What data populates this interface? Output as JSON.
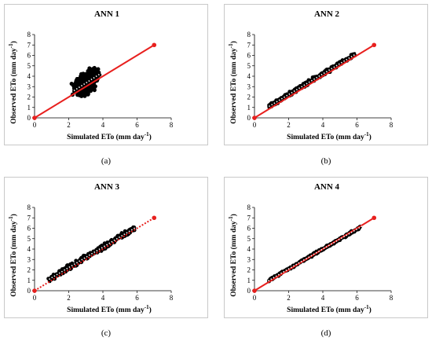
{
  "chart_data": [
    {
      "type": "scatter",
      "panel": "a",
      "caption": "(a)",
      "title": "ANN 1",
      "xlabel": "Simulated ETo (mm day",
      "ylabel": "Observed ETo (mm day",
      "label_superscript": "-1",
      "label_close": ")",
      "xlim": [
        0,
        8
      ],
      "ylim": [
        0,
        8
      ],
      "x_ticks": [
        "0",
        "2",
        "4",
        "6",
        "8"
      ],
      "y_ticks": [
        "0",
        "1",
        "2",
        "3",
        "4",
        "5",
        "6",
        "7",
        "8"
      ],
      "grid": false,
      "point_color": "#000000",
      "scatter_spread": 0.9,
      "x_range": [
        1.2,
        4.6
      ],
      "reference_line": {
        "from": [
          0,
          0
        ],
        "to": [
          7,
          7
        ],
        "color": "#e8201e",
        "style": "solid"
      },
      "trend_line": {
        "from": [
          1.3,
          1.55
        ],
        "to": [
          5.0,
          5.45
        ],
        "color": "#ffffff",
        "style": "dotted"
      }
    },
    {
      "type": "scatter",
      "panel": "b",
      "caption": "(b)",
      "title": "ANN 2",
      "xlabel": "Simulated ETo (mm day",
      "ylabel": "Observed ETo (mm day",
      "label_superscript": "-1",
      "label_close": ")",
      "xlim": [
        0,
        8
      ],
      "ylim": [
        0,
        8
      ],
      "x_ticks": [
        "0",
        "2",
        "4",
        "6",
        "8"
      ],
      "y_ticks": [
        "0",
        "1",
        "2",
        "3",
        "4",
        "5",
        "6",
        "7",
        "8"
      ],
      "grid": false,
      "point_color": "#000000",
      "scatter_spread": 0.2,
      "x_range": [
        0.8,
        5.9
      ],
      "reference_line": {
        "from": [
          0,
          0
        ],
        "to": [
          7,
          7
        ],
        "color": "#e8201e",
        "style": "solid"
      },
      "trend_line": {
        "from": [
          0.7,
          0.95
        ],
        "to": [
          6.0,
          6.2
        ],
        "color": "#ffffff",
        "style": "dotted"
      }
    },
    {
      "type": "scatter",
      "panel": "c",
      "caption": "(c)",
      "title": "ANN 3",
      "xlabel": "Simulated ETo (mm day",
      "ylabel": "Observed ETo (mm day",
      "label_superscript": "-1",
      "label_close": ")",
      "xlim": [
        0,
        8
      ],
      "ylim": [
        0,
        8
      ],
      "x_ticks": [
        "0",
        "2",
        "4",
        "6",
        "8"
      ],
      "y_ticks": [
        "0",
        "1",
        "2",
        "3",
        "4",
        "5",
        "6",
        "7",
        "8"
      ],
      "grid": false,
      "point_color": "#000000",
      "scatter_spread": 0.25,
      "x_range": [
        0.8,
        5.9
      ],
      "reference_line": {
        "from": [
          0,
          0
        ],
        "to": [
          7,
          7
        ],
        "color": "#e8201e",
        "style": "dotted"
      },
      "trend_line": {
        "from": [
          0.7,
          0.95
        ],
        "to": [
          6.0,
          6.15
        ],
        "color": "#ffffff",
        "style": "dotted"
      }
    },
    {
      "type": "scatter",
      "panel": "d",
      "caption": "(d)",
      "title": "ANN 4",
      "xlabel": "Simulated ETo (mm day",
      "ylabel": "Observed ETo (mm day",
      "label_superscript": "-1",
      "label_close": ")",
      "xlim": [
        0,
        8
      ],
      "ylim": [
        0,
        8
      ],
      "x_ticks": [
        "0",
        "2",
        "4",
        "6",
        "8"
      ],
      "y_ticks": [
        "0",
        "1",
        "2",
        "3",
        "4",
        "5",
        "6",
        "7",
        "8"
      ],
      "grid": false,
      "point_color": "#000000",
      "scatter_spread": 0.1,
      "x_range": [
        0.8,
        6.2
      ],
      "reference_line": {
        "from": [
          0,
          0
        ],
        "to": [
          7,
          7
        ],
        "color": "#e8201e",
        "style": "solid"
      },
      "trend_line": {
        "from": [
          0.8,
          0.95
        ],
        "to": [
          6.3,
          6.2
        ],
        "color": "#ffffff",
        "style": "dotted"
      }
    }
  ]
}
